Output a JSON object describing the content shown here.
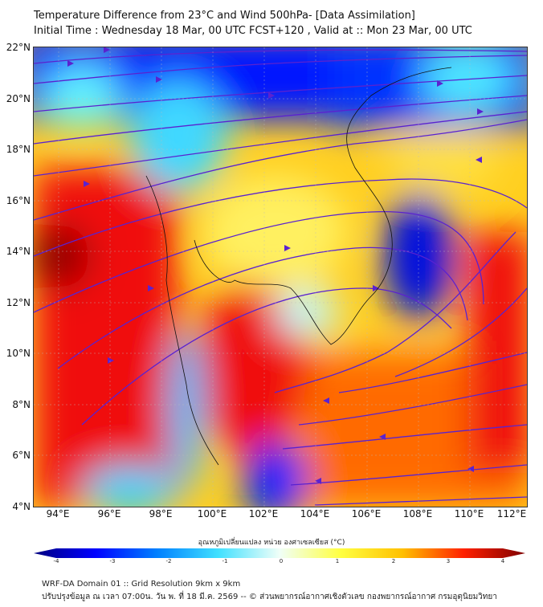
{
  "title": "Temperature Difference from 23°C and Wind 500hPa- [Data Assimilation]",
  "subtitle": "Initial Time : Wednesday 18 Mar, 00 UTC FCST+120 , Valid at ::  Mon 23 Mar, 00 UTC",
  "lat_labels": [
    "22°N",
    "20°N",
    "18°N",
    "16°N",
    "14°N",
    "12°N",
    "10°N",
    "8°N",
    "6°N",
    "4°N"
  ],
  "lon_labels": [
    "94°E",
    "96°E",
    "98°E",
    "100°E",
    "102°E",
    "104°E",
    "106°E",
    "108°E",
    "110°E",
    "112°E"
  ],
  "colorbar": {
    "label": "อุณหภูมิเปลี่ยนแปลง หน่วย องศาเซลเซียส (°C)",
    "ticks": [
      "-4",
      "-3",
      "-2",
      "-1",
      "0",
      "1",
      "2",
      "3",
      "4"
    ],
    "colors": [
      "#00007f",
      "#0000ff",
      "#0080ff",
      "#40e0ff",
      "#f0fff8",
      "#ffff40",
      "#ffc000",
      "#ff2000",
      "#7f0000"
    ]
  },
  "footer": {
    "line1": "WRF-DA Domain 01 :: Grid Resolution 9km x 9km",
    "line2": "ปรับปรุงข้อมูล ณ เวลา 07:00น. วัน พ. ที่ 18 มี.ค. 2569 -- © ส่วนพยากรณ์อากาศเชิงตัวเลข กองพยากรณ์อากาศ กรมอุตุนิยมวิทยา"
  }
}
